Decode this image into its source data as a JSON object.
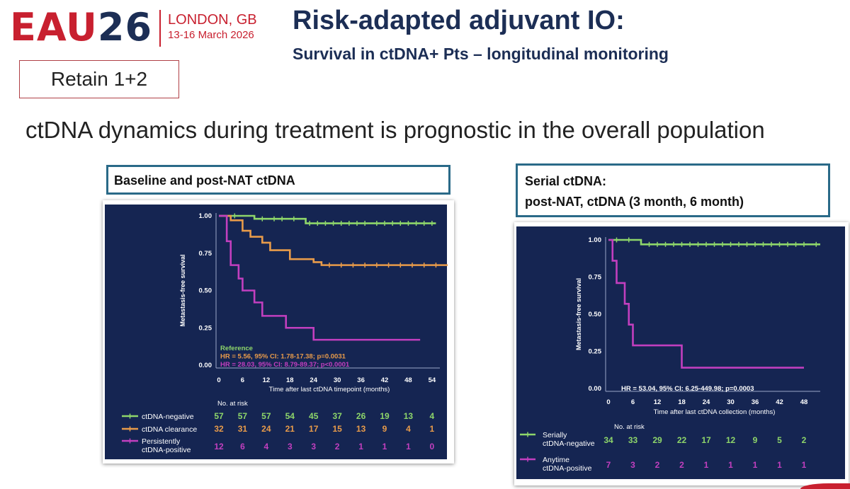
{
  "header": {
    "logo_part1": "EAU",
    "logo_part2": "26",
    "location": "LONDON, GB",
    "dates": "13-16 March 2026",
    "retain_label": "Retain 1+2",
    "title": "Risk-adapted adjuvant IO:",
    "subtitle": "Survival in ctDNA+ Pts – longitudinal monitoring",
    "headline": "ctDNA dynamics during treatment is prognostic in the overall population"
  },
  "colors": {
    "brand_red": "#c8202f",
    "navy": "#1c2e55",
    "plot_bg": "#152552",
    "green": "#8ed66a",
    "orange": "#e89b4a",
    "magenta": "#c23fbf"
  },
  "left_panel": {
    "label": "Baseline and post-NAT ctDNA"
  },
  "right_panel": {
    "label_line1": "Serial ctDNA:",
    "label_line2": "post-NAT,  ctDNA (3 month, 6 month)"
  },
  "chart_data": [
    {
      "type": "line",
      "subtype": "kaplan-meier",
      "ylabel": "Metastasis-free survival",
      "xlabel": "Time after last ctDNA timepoint (months)",
      "xlim": [
        0,
        56
      ],
      "ylim": [
        0,
        1
      ],
      "xticks": [
        0,
        6,
        12,
        18,
        24,
        30,
        36,
        42,
        48,
        54
      ],
      "yticks": [
        "0.00",
        "0.25",
        "0.50",
        "0.75",
        "1.00"
      ],
      "series": [
        {
          "name": "ctDNA-negative",
          "color": "#8ed66a",
          "steps": [
            [
              0,
              1.0
            ],
            [
              9,
              0.98
            ],
            [
              22,
              0.95
            ],
            [
              55,
              0.95
            ]
          ],
          "censors": [
            4,
            11,
            14,
            16,
            19,
            23,
            25,
            27,
            29,
            31,
            33,
            35,
            37,
            40,
            42,
            44,
            46,
            48,
            50,
            52,
            54
          ]
        },
        {
          "name": "ctDNA clearance",
          "color": "#e89b4a",
          "steps": [
            [
              0,
              1.0
            ],
            [
              3,
              0.97
            ],
            [
              6,
              0.9
            ],
            [
              8,
              0.86
            ],
            [
              11,
              0.82
            ],
            [
              13,
              0.77
            ],
            [
              18,
              0.71
            ],
            [
              24,
              0.69
            ],
            [
              26,
              0.67
            ],
            [
              58,
              0.67
            ]
          ],
          "censors": [
            28,
            31,
            34,
            37,
            40,
            43,
            46,
            49,
            52,
            55
          ]
        },
        {
          "name": "Persistently ctDNA-positive",
          "color": "#c23fbf",
          "steps": [
            [
              0,
              1.0
            ],
            [
              2,
              0.83
            ],
            [
              3,
              0.67
            ],
            [
              5,
              0.58
            ],
            [
              6,
              0.5
            ],
            [
              9,
              0.42
            ],
            [
              11,
              0.33
            ],
            [
              17,
              0.25
            ],
            [
              24,
              0.17
            ],
            [
              51,
              0.17
            ]
          ],
          "censors": []
        }
      ],
      "annotations": [
        {
          "text": "Reference",
          "color": "#8ed66a"
        },
        {
          "text": "HR = 5.56, 95% CI: 1.78-17.38; p=0.0031",
          "color": "#e89b4a"
        },
        {
          "text": "HR = 28.03, 95% CI: 8.79-89.37; p<0.0001",
          "color": "#c23fbf"
        }
      ],
      "risk_table": {
        "title": "No. at risk",
        "rows": [
          {
            "label": "ctDNA-negative",
            "color": "#8ed66a",
            "values": [
              57,
              57,
              57,
              54,
              45,
              37,
              26,
              19,
              13,
              4
            ]
          },
          {
            "label": "ctDNA clearance",
            "color": "#e89b4a",
            "values": [
              32,
              31,
              24,
              21,
              17,
              15,
              13,
              9,
              4,
              1
            ]
          },
          {
            "label": "Persistently\nctDNA-positive",
            "color": "#c23fbf",
            "values": [
              12,
              6,
              4,
              3,
              3,
              2,
              1,
              1,
              1,
              0
            ]
          }
        ]
      }
    },
    {
      "type": "line",
      "subtype": "kaplan-meier",
      "ylabel": "Metastasis-free survival",
      "xlabel": "Time after last ctDNA collection (months)",
      "xlim": [
        0,
        52
      ],
      "ylim": [
        0,
        1
      ],
      "xticks": [
        0,
        6,
        12,
        18,
        24,
        30,
        36,
        42,
        48
      ],
      "yticks": [
        "0.00",
        "0.25",
        "0.50",
        "0.75",
        "1.00"
      ],
      "series": [
        {
          "name": "Serially ctDNA-negative",
          "color": "#8ed66a",
          "steps": [
            [
              0,
              1.0
            ],
            [
              8,
              0.97
            ],
            [
              52,
              0.97
            ]
          ],
          "censors": [
            2,
            5,
            10,
            12,
            14,
            16,
            18,
            20,
            22,
            24,
            26,
            28,
            30,
            32,
            34,
            36,
            38,
            40,
            42,
            44,
            46,
            48,
            51
          ]
        },
        {
          "name": "Anytime ctDNA-positive",
          "color": "#c23fbf",
          "steps": [
            [
              0,
              1.0
            ],
            [
              1,
              0.86
            ],
            [
              2,
              0.71
            ],
            [
              4,
              0.57
            ],
            [
              5,
              0.43
            ],
            [
              6,
              0.29
            ],
            [
              18,
              0.14
            ],
            [
              48,
              0.14
            ]
          ],
          "censors": []
        }
      ],
      "annotations": [
        {
          "text": "HR = 53.04, 95% CI: 6.25-449.98; p=0.0003",
          "color": "#ffffff"
        }
      ],
      "risk_table": {
        "title": "No. at risk",
        "rows": [
          {
            "label": "Serially\nctDNA-negative",
            "color": "#8ed66a",
            "values": [
              34,
              33,
              29,
              22,
              17,
              12,
              9,
              5,
              2
            ]
          },
          {
            "label": "Anytime\nctDNA-positive",
            "color": "#c23fbf",
            "values": [
              7,
              3,
              2,
              2,
              1,
              1,
              1,
              1,
              1
            ]
          }
        ]
      }
    }
  ]
}
